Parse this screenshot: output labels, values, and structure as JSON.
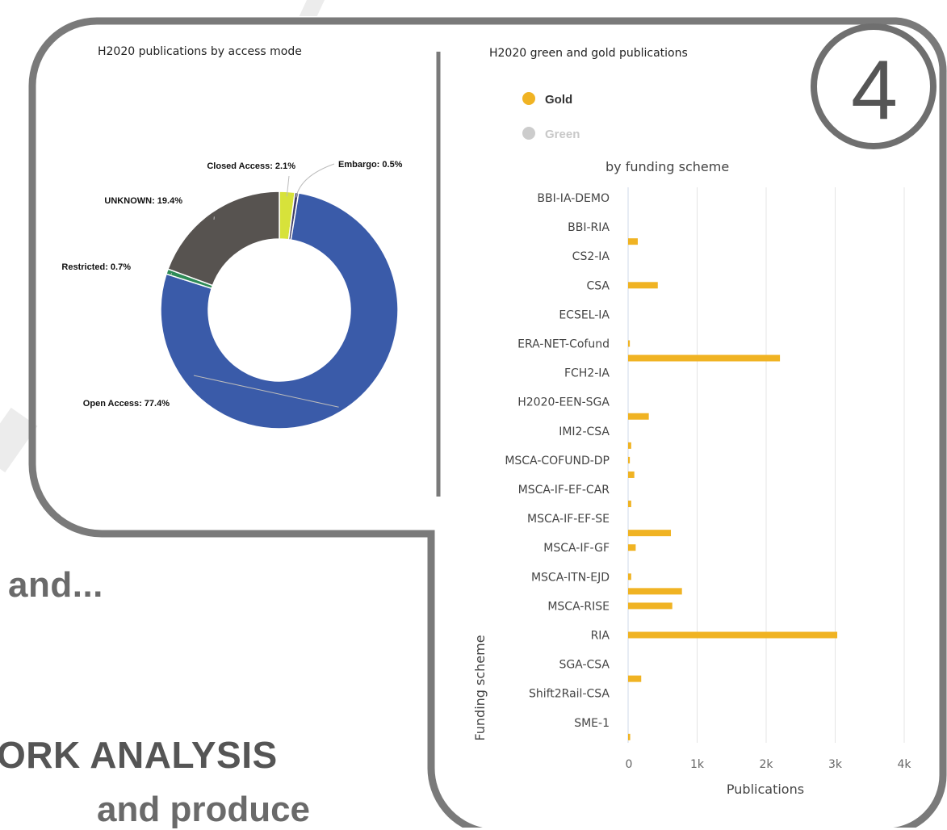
{
  "colors": {
    "frame": "#7a7a7a",
    "gold": "#f0b323",
    "green": "#cccccc",
    "open_access": "#3a5ba9",
    "unknown": "#575350",
    "closed_access": "#d7e23a",
    "embargo": "#3f3f6a",
    "restricted": "#2e8b57"
  },
  "badge": {
    "number": "4"
  },
  "background_text": {
    "line1": "and...",
    "line2": "ORK ANALYSIS",
    "line3": "and produce"
  },
  "chart_data": [
    {
      "type": "pie",
      "variant": "donut",
      "title": "H2020 publications by access mode",
      "slices": [
        {
          "label": "Closed Access",
          "value": 2.1,
          "display": "Closed Access: 2.1%",
          "color": "#d7e23a"
        },
        {
          "label": "Embargo",
          "value": 0.5,
          "display": "Embargo: 0.5%",
          "color": "#3f3f6a"
        },
        {
          "label": "Open Access",
          "value": 77.4,
          "display": "Open Access: 77.4%",
          "color": "#3a5ba9"
        },
        {
          "label": "Restricted",
          "value": 0.7,
          "display": "Restricted: 0.7%",
          "color": "#2e8b57"
        },
        {
          "label": "UNKNOWN",
          "value": 19.4,
          "display": "UNKNOWN: 19.4%",
          "color": "#575350"
        }
      ]
    },
    {
      "type": "bar",
      "orientation": "horizontal",
      "title": "H2020 green and gold publications",
      "subtitle": "by funding scheme",
      "xlabel": "Publications",
      "ylabel": "Funding scheme",
      "xlim": [
        0,
        4000
      ],
      "xticks": [
        "0",
        "1k",
        "2k",
        "3k",
        "4k"
      ],
      "grid": true,
      "legend": [
        "Gold",
        "Green"
      ],
      "categories": [
        "BBI-IA-DEMO",
        "BBI-RIA",
        "CS2-IA",
        "CSA",
        "ECSEL-IA",
        "ERA-NET-Cofund",
        "FCH2-IA",
        "H2020-EEN-SGA",
        "IMI2-CSA",
        "MSCA-COFUND-DP",
        "MSCA-IF-EF-CAR",
        "MSCA-IF-EF-SE",
        "MSCA-IF-GF",
        "MSCA-ITN-EJD",
        "MSCA-RISE",
        "RIA",
        "SGA-CSA",
        "Shift2Rail-CSA",
        "SME-1"
      ],
      "series": [
        {
          "name": "Gold",
          "bars": [
            {
              "row": 1.5,
              "value": 140
            },
            {
              "row": 3.0,
              "value": 430
            },
            {
              "row": 5.0,
              "value": 25
            },
            {
              "row": 5.5,
              "value": 2200
            },
            {
              "row": 7.5,
              "value": 300
            },
            {
              "row": 8.5,
              "value": 45
            },
            {
              "row": 9.0,
              "value": 25
            },
            {
              "row": 9.5,
              "value": 90
            },
            {
              "row": 10.5,
              "value": 45
            },
            {
              "row": 11.5,
              "value": 620
            },
            {
              "row": 12.0,
              "value": 110
            },
            {
              "row": 13.0,
              "value": 45
            },
            {
              "row": 13.5,
              "value": 780
            },
            {
              "row": 14.0,
              "value": 640
            },
            {
              "row": 15.0,
              "value": 3030
            },
            {
              "row": 16.5,
              "value": 190
            },
            {
              "row": 18.5,
              "value": 30
            }
          ]
        },
        {
          "name": "Green",
          "bars": []
        }
      ]
    }
  ]
}
